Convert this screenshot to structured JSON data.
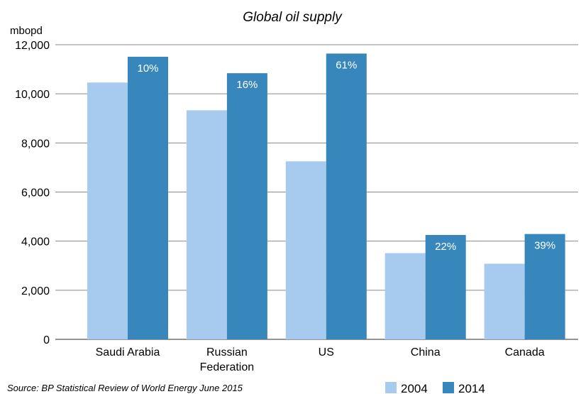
{
  "chart_data": {
    "type": "bar",
    "title": "Global oil supply",
    "ylabel": "mbopd",
    "ylim": [
      0,
      12000
    ],
    "yticks": [
      0,
      2000,
      4000,
      6000,
      8000,
      10000,
      12000
    ],
    "ytick_labels": [
      "0",
      "2,000",
      "4,000",
      "6,000",
      "8,000",
      "10,000",
      "12,000"
    ],
    "grid": true,
    "legend_position": "bottom-right",
    "categories": [
      [
        "Saudi Arabia"
      ],
      [
        "Russian",
        "Federation"
      ],
      [
        "US"
      ],
      [
        "China"
      ],
      [
        "Canada"
      ]
    ],
    "series": [
      {
        "name": "2004",
        "color": "#a7cbee",
        "values": [
          10460,
          9330,
          7250,
          3510,
          3080
        ]
      },
      {
        "name": "2014",
        "color": "#3787bc",
        "values": [
          11510,
          10840,
          11640,
          4250,
          4290
        ]
      }
    ],
    "data_labels": [
      "10%",
      "16%",
      "61%",
      "22%",
      "39%"
    ],
    "source": "Source: BP Statistical Review of World Energy June 2015"
  }
}
